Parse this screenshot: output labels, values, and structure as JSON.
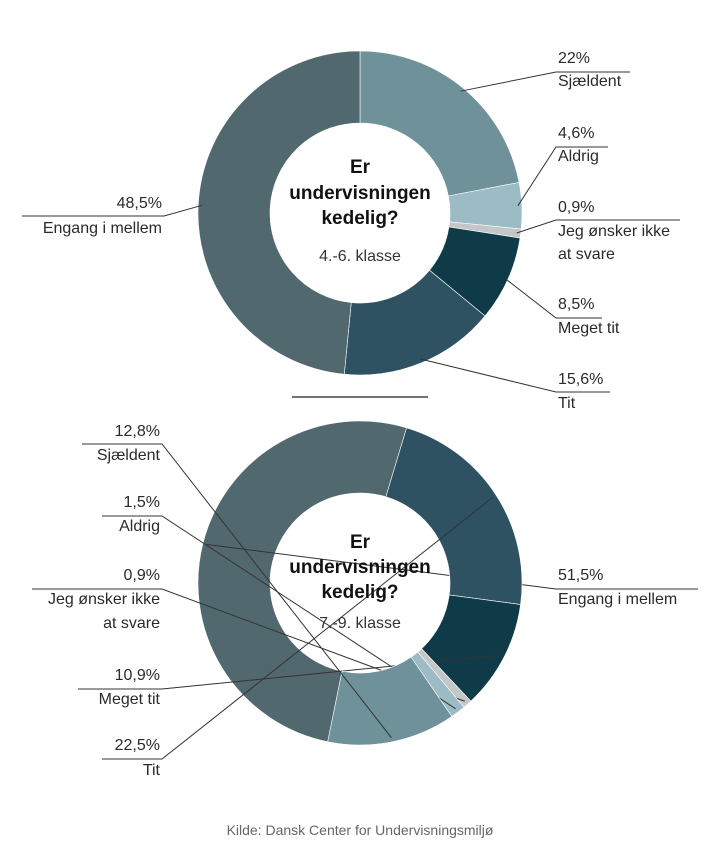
{
  "chart_data": [
    {
      "type": "pie",
      "title": "Er undervisningen kedelig?",
      "title_lines": [
        "Er",
        "undervisningen",
        "kedelig?"
      ],
      "subtitle": "4.-6. klasse",
      "slices": [
        {
          "label_lines": [
            "Sjældent"
          ],
          "value": 22,
          "value_label": "22%",
          "color": "#6e919a"
        },
        {
          "label_lines": [
            "Aldrig"
          ],
          "value": 4.6,
          "value_label": "4,6%",
          "color": "#9bbcc4"
        },
        {
          "label_lines": [
            "Jeg ønsker ikke",
            "at svare"
          ],
          "value": 0.9,
          "value_label": "0,9%",
          "color": "#c3c7c8"
        },
        {
          "label_lines": [
            "Meget tit"
          ],
          "value": 8.5,
          "value_label": "8,5%",
          "color": "#0f3b48"
        },
        {
          "label_lines": [
            "Tit"
          ],
          "value": 15.6,
          "value_label": "15,6%",
          "color": "#2e5262"
        },
        {
          "label_lines": [
            "Engang i mellem"
          ],
          "value": 48.5,
          "value_label": "48,5%",
          "color": "#52686f"
        }
      ]
    },
    {
      "type": "pie",
      "title": "Er undervisningen kedelig?",
      "title_lines": [
        "Er",
        "undervisningen",
        "kedelig?"
      ],
      "subtitle": "7.-9. klasse",
      "slices": [
        {
          "label_lines": [
            "Engang i mellem"
          ],
          "value": 51.5,
          "value_label": "51,5%",
          "color": "#52686f"
        },
        {
          "label_lines": [
            "Tit"
          ],
          "value": 22.5,
          "value_label": "22,5%",
          "color": "#2e5262"
        },
        {
          "label_lines": [
            "Meget tit"
          ],
          "value": 10.9,
          "value_label": "10,9%",
          "color": "#0f3b48"
        },
        {
          "label_lines": [
            "Jeg ønsker ikke",
            "at svare"
          ],
          "value": 0.9,
          "value_label": "0,9%",
          "color": "#c3c7c8"
        },
        {
          "label_lines": [
            "Aldrig"
          ],
          "value": 1.5,
          "value_label": "1,5%",
          "color": "#9bbcc4"
        },
        {
          "label_lines": [
            "Sjældent"
          ],
          "value": 12.8,
          "value_label": "12,8%",
          "color": "#6e919a"
        }
      ]
    }
  ],
  "source": "Kilde: Dansk Center for Undervisningsmiljø"
}
